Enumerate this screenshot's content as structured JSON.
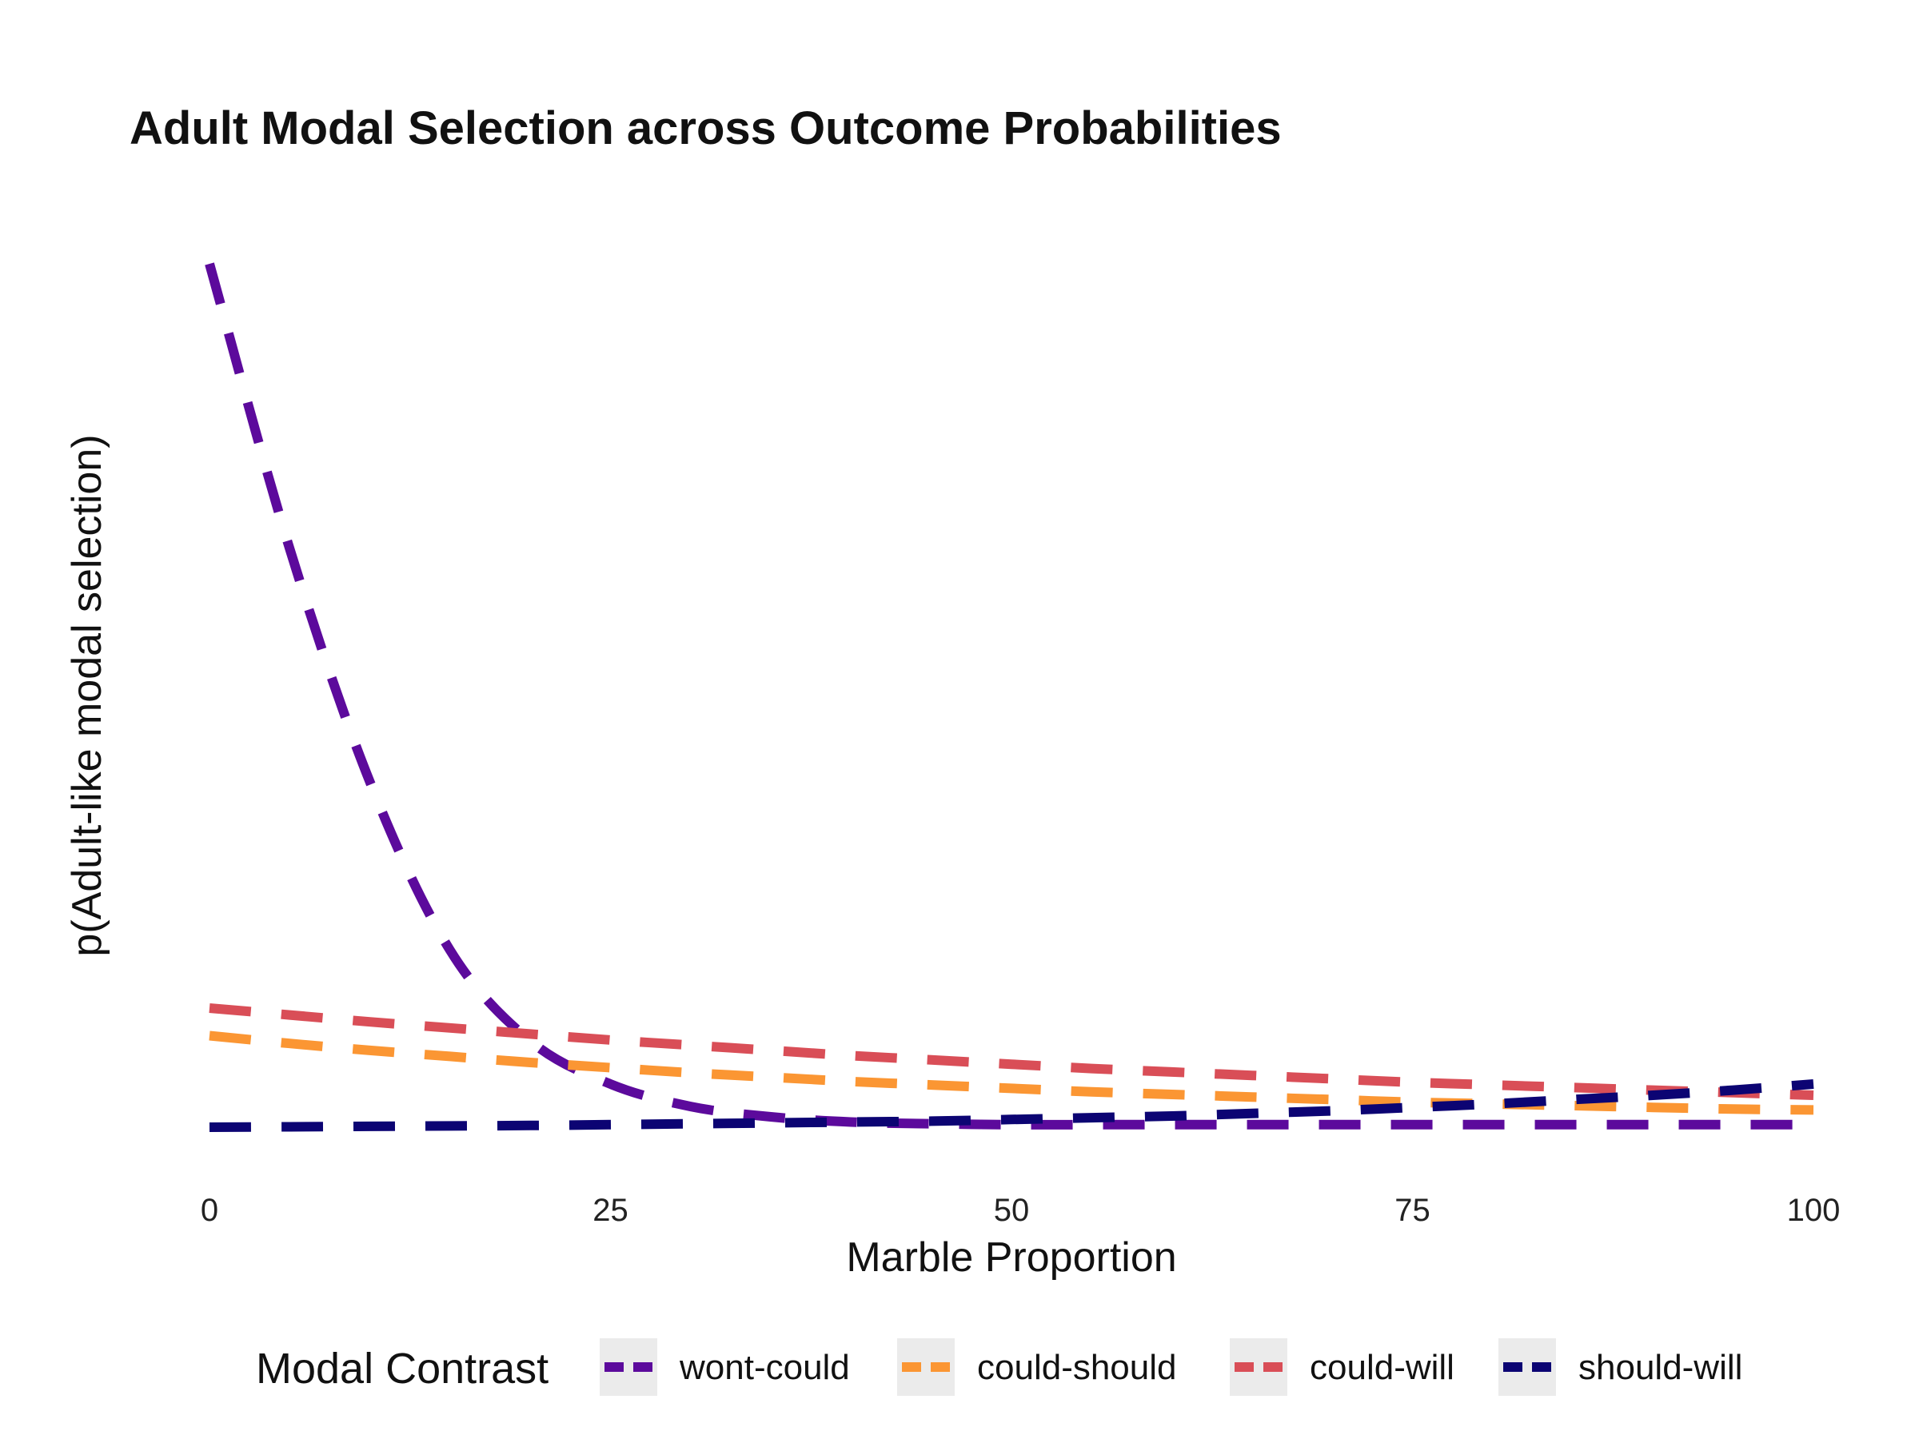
{
  "chart_data": {
    "type": "line",
    "title": "Adult Modal Selection across Outcome Probabilities",
    "xlabel": "Marble Proportion",
    "ylabel": "p(Adult-like modal selection)",
    "xlim": [
      0,
      100
    ],
    "ylim": [
      0,
      1
    ],
    "x_ticks": [
      0,
      25,
      50,
      75,
      100
    ],
    "x_tick_labels": [
      "0",
      "25",
      "50",
      "75",
      "100"
    ],
    "grid": false,
    "line_style": "dashed",
    "legend": {
      "title": "Modal Contrast",
      "position": "bottom"
    },
    "x": [
      0,
      5,
      10,
      15,
      20,
      25,
      30,
      35,
      40,
      45,
      50,
      55,
      60,
      65,
      70,
      75,
      80,
      85,
      90,
      95,
      100
    ],
    "series": [
      {
        "name": "wont-could",
        "color": "#5c0a9c",
        "values": [
          1.0,
          0.67,
          0.4,
          0.205,
          0.1,
          0.05,
          0.024,
          0.012,
          0.006,
          0.004,
          0.003,
          0.003,
          0.003,
          0.003,
          0.003,
          0.003,
          0.003,
          0.003,
          0.003,
          0.003,
          0.003
        ]
      },
      {
        "name": "could-should",
        "color": "#fb9633",
        "values": [
          0.106,
          0.097,
          0.089,
          0.082,
          0.075,
          0.069,
          0.063,
          0.058,
          0.053,
          0.049,
          0.045,
          0.041,
          0.038,
          0.035,
          0.032,
          0.029,
          0.027,
          0.025,
          0.023,
          0.021,
          0.02
        ]
      },
      {
        "name": "could-will",
        "color": "#d94e57",
        "values": [
          0.138,
          0.13,
          0.122,
          0.115,
          0.108,
          0.101,
          0.095,
          0.089,
          0.083,
          0.078,
          0.073,
          0.068,
          0.064,
          0.06,
          0.056,
          0.052,
          0.049,
          0.046,
          0.043,
          0.04,
          0.037
        ]
      },
      {
        "name": "should-will",
        "color": "#0c0473",
        "values": [
          0.0,
          0.0005,
          0.001,
          0.0015,
          0.002,
          0.003,
          0.004,
          0.005,
          0.006,
          0.007,
          0.009,
          0.011,
          0.013,
          0.016,
          0.019,
          0.023,
          0.027,
          0.032,
          0.037,
          0.043,
          0.05
        ]
      }
    ]
  }
}
